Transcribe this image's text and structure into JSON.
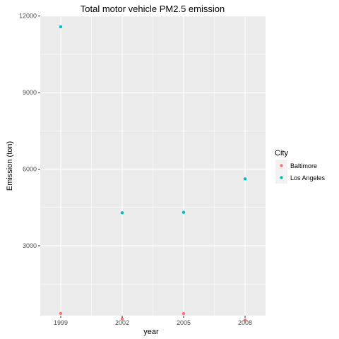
{
  "chart_data": {
    "type": "scatter",
    "title": "Total motor vehicle PM2.5 emission",
    "xlabel": "year",
    "ylabel": "Emission (ton)",
    "x": [
      "1999",
      "2002",
      "2005",
      "2008"
    ],
    "xlim": [
      1998,
      2009
    ],
    "ylim": [
      260,
      12020
    ],
    "yticks": [
      3000,
      6000,
      9000,
      12000
    ],
    "grid": true,
    "legend": {
      "title": "City",
      "placement": "right"
    },
    "series": [
      {
        "name": "Baltimore",
        "color": "#F8766D",
        "values": [
          347,
          135,
          342,
          88
        ]
      },
      {
        "name": "Los Angeles",
        "color": "#00BFC4",
        "values": [
          11580,
          4290,
          4310,
          5620
        ]
      }
    ]
  }
}
